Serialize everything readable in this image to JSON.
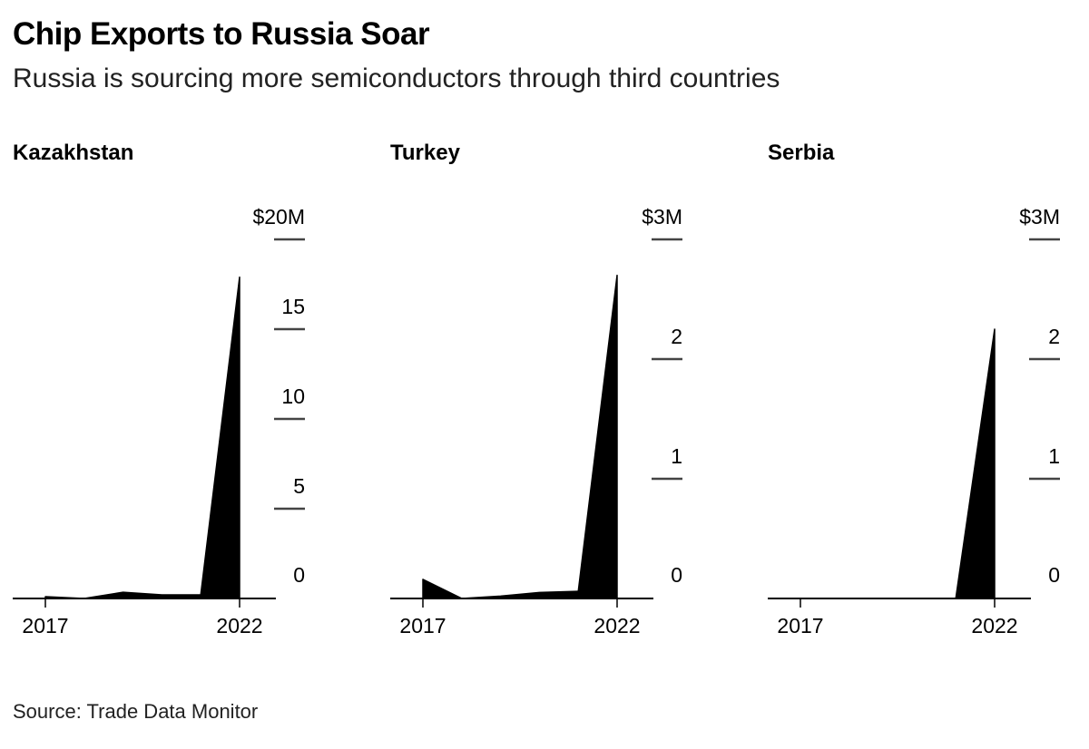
{
  "title": "Chip Exports to Russia Soar",
  "subtitle": "Russia is sourcing more semiconductors through third countries",
  "source": "Source: Trade Data Monitor",
  "colors": {
    "area": "#000000",
    "axis": "#000000",
    "tick": "#444444"
  },
  "chart_data": [
    {
      "type": "area",
      "title": "Kazakhstan",
      "x": [
        2017,
        2018,
        2019,
        2020,
        2021,
        2022
      ],
      "values": [
        0.1,
        0.0,
        0.35,
        0.2,
        0.2,
        17.9
      ],
      "ylim": [
        0,
        20
      ],
      "yticks": [
        0,
        5,
        10,
        15,
        20
      ],
      "ytick_labels": [
        "0",
        "5",
        "10",
        "15",
        "$20M"
      ],
      "xticks": [
        2017,
        2022
      ],
      "xtick_labels": [
        "2017",
        "2022"
      ]
    },
    {
      "type": "area",
      "title": "Turkey",
      "x": [
        2017,
        2018,
        2019,
        2020,
        2021,
        2022
      ],
      "values": [
        0.16,
        0.0,
        0.02,
        0.05,
        0.06,
        2.7
      ],
      "ylim": [
        0,
        3
      ],
      "yticks": [
        0,
        1,
        2,
        3
      ],
      "ytick_labels": [
        "0",
        "1",
        "2",
        "$3M"
      ],
      "xticks": [
        2017,
        2022
      ],
      "xtick_labels": [
        "2017",
        "2022"
      ]
    },
    {
      "type": "area",
      "title": "Serbia",
      "x": [
        2017,
        2018,
        2019,
        2020,
        2021,
        2022
      ],
      "values": [
        0,
        0,
        0,
        0,
        0,
        2.25
      ],
      "ylim": [
        0,
        3
      ],
      "yticks": [
        0,
        1,
        2,
        3
      ],
      "ytick_labels": [
        "0",
        "1",
        "2",
        "$3M"
      ],
      "xticks": [
        2017,
        2022
      ],
      "xtick_labels": [
        "2017",
        "2022"
      ]
    }
  ]
}
